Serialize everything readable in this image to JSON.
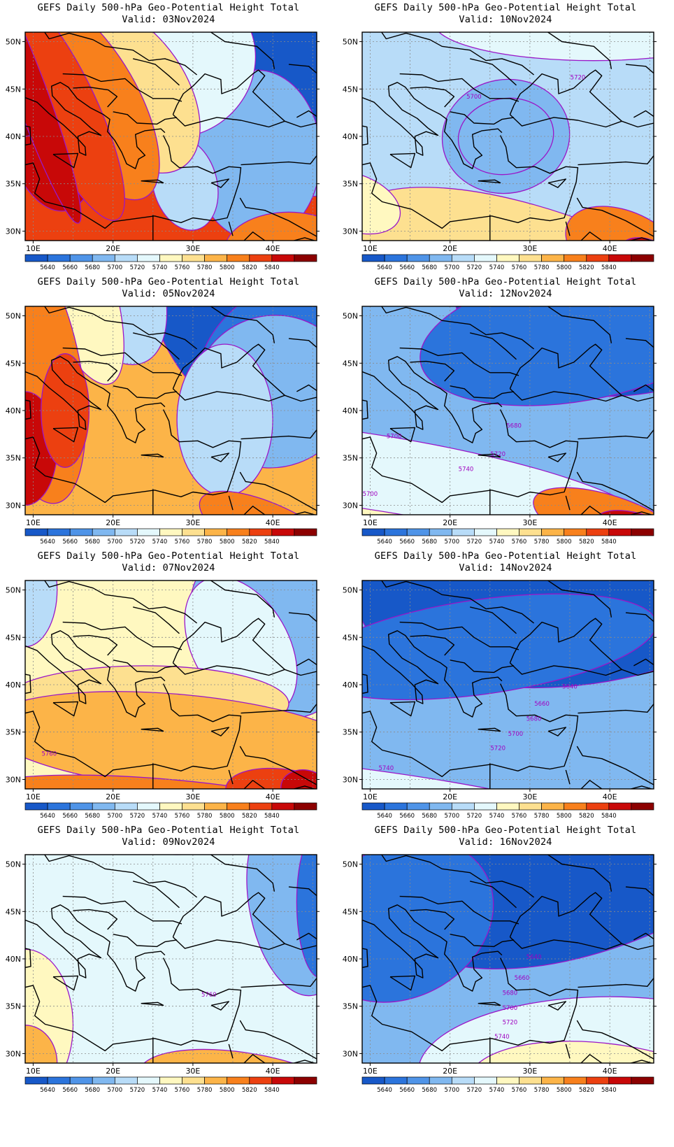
{
  "title_line1": "GEFS Daily 500-hPa Geo-Potential Height Total",
  "valid_prefix": "Valid:",
  "lat_ticks": [
    "50N",
    "45N",
    "40N",
    "35N",
    "30N"
  ],
  "lon_ticks": [
    "10E",
    "20E",
    "30E",
    "40E"
  ],
  "colorbar": {
    "labels": [
      "5640",
      "5660",
      "5680",
      "5700",
      "5720",
      "5740",
      "5760",
      "5780",
      "5800",
      "5820",
      "5840"
    ],
    "colors": [
      "#1758c8",
      "#2b74dc",
      "#4f94e8",
      "#80b8f0",
      "#b8dcf8",
      "#e4f8fc",
      "#fff8c0",
      "#fde090",
      "#fcb448",
      "#f8801c",
      "#ec4010",
      "#c80808",
      "#8c0000"
    ]
  },
  "panels": [
    {
      "valid": "03Nov2024",
      "contour_labels": []
    },
    {
      "valid": "10Nov2024",
      "contour_labels": [
        "5700",
        "5720"
      ]
    },
    {
      "valid": "05Nov2024",
      "contour_labels": []
    },
    {
      "valid": "12Nov2024",
      "contour_labels": [
        "5680",
        "5700",
        "5720",
        "5740",
        "5700"
      ]
    },
    {
      "valid": "07Nov2024",
      "contour_labels": [
        "5760"
      ]
    },
    {
      "valid": "14Nov2024",
      "contour_labels": [
        "5640",
        "5660",
        "5680",
        "5700",
        "5720",
        "5740"
      ]
    },
    {
      "valid": "09Nov2024",
      "contour_labels": [
        "5760"
      ]
    },
    {
      "valid": "16Nov2024",
      "contour_labels": [
        "5640",
        "5660",
        "5680",
        "5700",
        "5720",
        "5740"
      ]
    }
  ]
}
